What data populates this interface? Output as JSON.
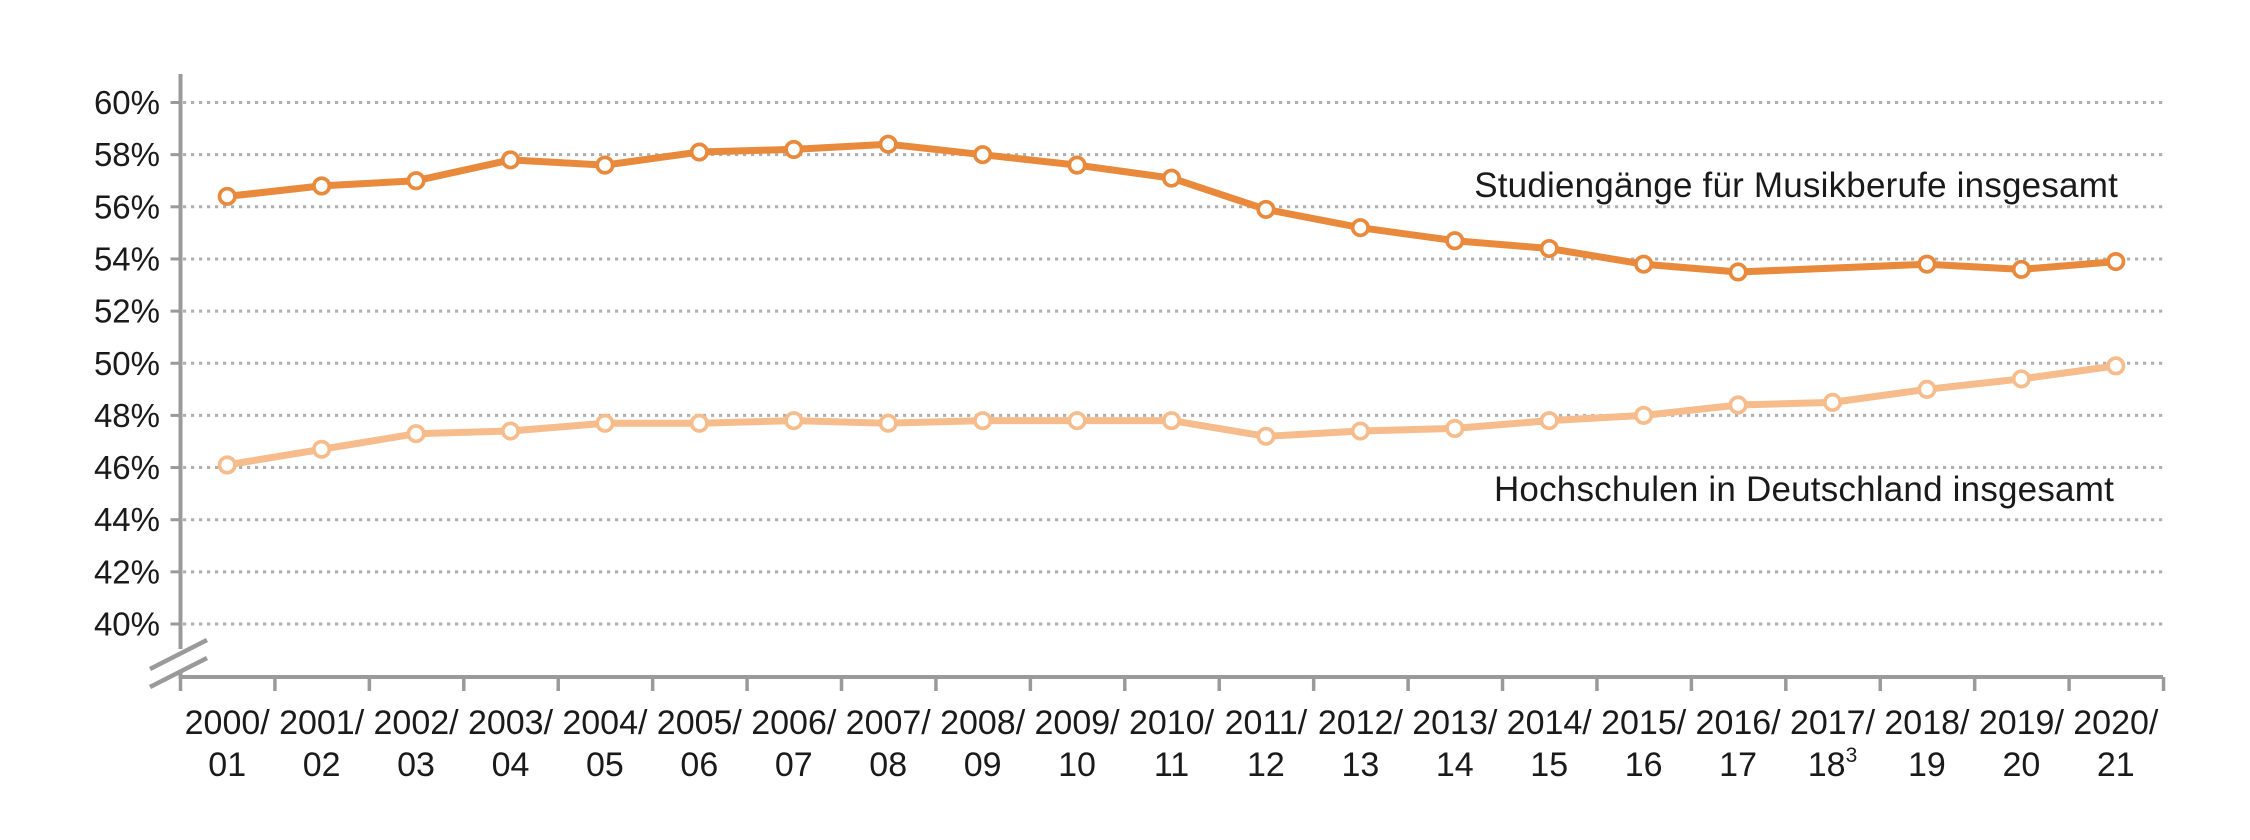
{
  "chart_data": {
    "type": "line",
    "title": "",
    "xlabel": "",
    "ylabel": "",
    "categories": [
      "2000/01",
      "2001/02",
      "2002/03",
      "2003/04",
      "2004/05",
      "2005/06",
      "2006/07",
      "2007/08",
      "2008/09",
      "2009/10",
      "2010/11",
      "2011/12",
      "2012/13",
      "2013/14",
      "2014/15",
      "2015/16",
      "2016/17",
      "2017/18",
      "2018/19",
      "2019/20",
      "2020/21"
    ],
    "category_footnote": {
      "index": 17,
      "symbol": "3"
    },
    "series": [
      {
        "name": "Studiengänge für Musikberufe insgesamt",
        "color": "#E8893C",
        "values": [
          56.4,
          56.8,
          57.0,
          57.8,
          57.6,
          58.1,
          58.2,
          58.4,
          58.0,
          57.6,
          57.1,
          55.9,
          55.2,
          54.7,
          54.4,
          53.8,
          53.5,
          null,
          53.8,
          53.6,
          53.9
        ]
      },
      {
        "name": "Hochschulen in Deutschland insgesamt",
        "color": "#F6BC8C",
        "values": [
          46.1,
          46.7,
          47.3,
          47.4,
          47.7,
          47.7,
          47.8,
          47.7,
          47.8,
          47.8,
          47.8,
          47.2,
          47.4,
          47.5,
          47.8,
          48.0,
          48.4,
          48.5,
          49.0,
          49.4,
          49.9
        ]
      }
    ],
    "yticks": [
      60,
      58,
      56,
      54,
      52,
      50,
      48,
      46,
      44,
      42,
      40
    ],
    "ytick_suffix": "%",
    "ylim": [
      40,
      60
    ],
    "axis_break_at_bottom": true,
    "grid": "horizontal-dotted",
    "legend_position": "inline-labels-right",
    "marker": "open-circle",
    "colors": {
      "axis": "#9A9A9A",
      "grid": "#AFAFAF",
      "text": "#1A1A1A",
      "background": "#FFFFFF"
    }
  }
}
